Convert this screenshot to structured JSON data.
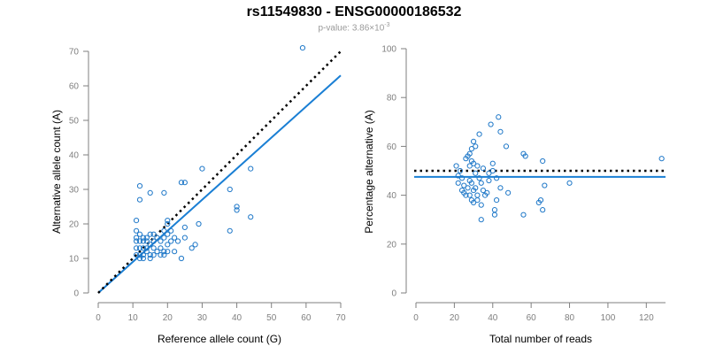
{
  "title": "rs11549830 - ENSG00000186532",
  "subtitle": {
    "prefix": "p-value: 3.86×10",
    "exponent": "-3"
  },
  "colors": {
    "points": "#1f78c8",
    "fit_line": "#1a7fd4",
    "reference_line": "#000000",
    "axis": "#7f7f7f"
  },
  "chart_data": [
    {
      "type": "scatter",
      "xlabel": "Reference allele count (G)",
      "ylabel": "Alternative allele count (A)",
      "xlim": [
        0,
        70
      ],
      "ylim": [
        0,
        70
      ],
      "xticks": [
        "0",
        "10",
        "20",
        "30",
        "40",
        "50",
        "60",
        "70"
      ],
      "yticks": [
        "0",
        "10",
        "20",
        "30",
        "40",
        "50",
        "60",
        "70"
      ],
      "points": [
        [
          11,
          21
        ],
        [
          12,
          31
        ],
        [
          12,
          27
        ],
        [
          15,
          29
        ],
        [
          19,
          29
        ],
        [
          24,
          32
        ],
        [
          25,
          32
        ],
        [
          30,
          36
        ],
        [
          38,
          30
        ],
        [
          40,
          25
        ],
        [
          40,
          24
        ],
        [
          44,
          36
        ],
        [
          59,
          71
        ],
        [
          11,
          11
        ],
        [
          11,
          13
        ],
        [
          11,
          15
        ],
        [
          11,
          16
        ],
        [
          11,
          18
        ],
        [
          12,
          17
        ],
        [
          12,
          15
        ],
        [
          12,
          13
        ],
        [
          12,
          11
        ],
        [
          12,
          10
        ],
        [
          13,
          16
        ],
        [
          13,
          15
        ],
        [
          13,
          13
        ],
        [
          13,
          11
        ],
        [
          13,
          10
        ],
        [
          14,
          15
        ],
        [
          14,
          13
        ],
        [
          14,
          12
        ],
        [
          14,
          16
        ],
        [
          15,
          11
        ],
        [
          15,
          10
        ],
        [
          15,
          14
        ],
        [
          15,
          17
        ],
        [
          16,
          17
        ],
        [
          16,
          13
        ],
        [
          16,
          11
        ],
        [
          16,
          15
        ],
        [
          17,
          16
        ],
        [
          17,
          12
        ],
        [
          18,
          13
        ],
        [
          18,
          15
        ],
        [
          18,
          11
        ],
        [
          19,
          12
        ],
        [
          19,
          16
        ],
        [
          19,
          11
        ],
        [
          19,
          18
        ],
        [
          20,
          21
        ],
        [
          20,
          20
        ],
        [
          20,
          17
        ],
        [
          20,
          14
        ],
        [
          20,
          12
        ],
        [
          21,
          15
        ],
        [
          21,
          18
        ],
        [
          22,
          16
        ],
        [
          22,
          12
        ],
        [
          23,
          15
        ],
        [
          24,
          10
        ],
        [
          25,
          19
        ],
        [
          25,
          16
        ],
        [
          27,
          13
        ],
        [
          28,
          14
        ],
        [
          29,
          20
        ],
        [
          38,
          18
        ],
        [
          44,
          22
        ]
      ],
      "series": [
        {
          "name": "",
          "kind": "fit",
          "slope": 0.9
        },
        {
          "name": "",
          "kind": "reference",
          "slope": 1.0
        }
      ]
    },
    {
      "type": "scatter",
      "xlabel": "Total number of reads",
      "ylabel": "Percentage alternative (A)",
      "xlim": [
        0,
        130
      ],
      "ylim": [
        0,
        100
      ],
      "xticks": [
        "0",
        "20",
        "40",
        "60",
        "80",
        "100",
        "120"
      ],
      "yticks": [
        "0",
        "20",
        "40",
        "60",
        "80",
        "100"
      ],
      "points": [
        [
          21,
          52
        ],
        [
          22,
          48
        ],
        [
          22,
          45
        ],
        [
          23,
          50
        ],
        [
          24,
          42
        ],
        [
          24,
          47
        ],
        [
          25,
          41
        ],
        [
          25,
          44
        ],
        [
          26,
          55
        ],
        [
          26,
          40
        ],
        [
          27,
          43
        ],
        [
          27,
          56
        ],
        [
          28,
          57
        ],
        [
          28,
          52
        ],
        [
          28,
          46
        ],
        [
          28,
          40
        ],
        [
          29,
          59
        ],
        [
          29,
          54
        ],
        [
          29,
          45
        ],
        [
          29,
          38
        ],
        [
          30,
          62
        ],
        [
          30,
          53
        ],
        [
          30,
          42
        ],
        [
          30,
          37
        ],
        [
          31,
          49
        ],
        [
          31,
          43
        ],
        [
          31,
          60
        ],
        [
          32,
          52
        ],
        [
          32,
          40
        ],
        [
          32,
          38
        ],
        [
          33,
          65
        ],
        [
          33,
          47
        ],
        [
          34,
          45
        ],
        [
          34,
          36
        ],
        [
          34,
          30
        ],
        [
          35,
          51
        ],
        [
          35,
          42
        ],
        [
          36,
          40
        ],
        [
          37,
          41
        ],
        [
          38,
          49
        ],
        [
          38,
          46
        ],
        [
          39,
          69
        ],
        [
          40,
          53
        ],
        [
          40,
          50
        ],
        [
          41,
          32
        ],
        [
          41,
          34
        ],
        [
          42,
          38
        ],
        [
          42,
          47
        ],
        [
          43,
          72
        ],
        [
          44,
          66
        ],
        [
          44,
          43
        ],
        [
          47,
          60
        ],
        [
          48,
          41
        ],
        [
          56,
          57
        ],
        [
          56,
          32
        ],
        [
          57,
          56
        ],
        [
          64,
          37
        ],
        [
          65,
          38
        ],
        [
          66,
          54
        ],
        [
          66,
          34
        ],
        [
          67,
          44
        ],
        [
          80,
          45
        ],
        [
          128,
          55
        ]
      ],
      "series": [
        {
          "name": "",
          "kind": "fit",
          "y": 47.5
        },
        {
          "name": "",
          "kind": "reference",
          "y": 50
        }
      ]
    }
  ]
}
